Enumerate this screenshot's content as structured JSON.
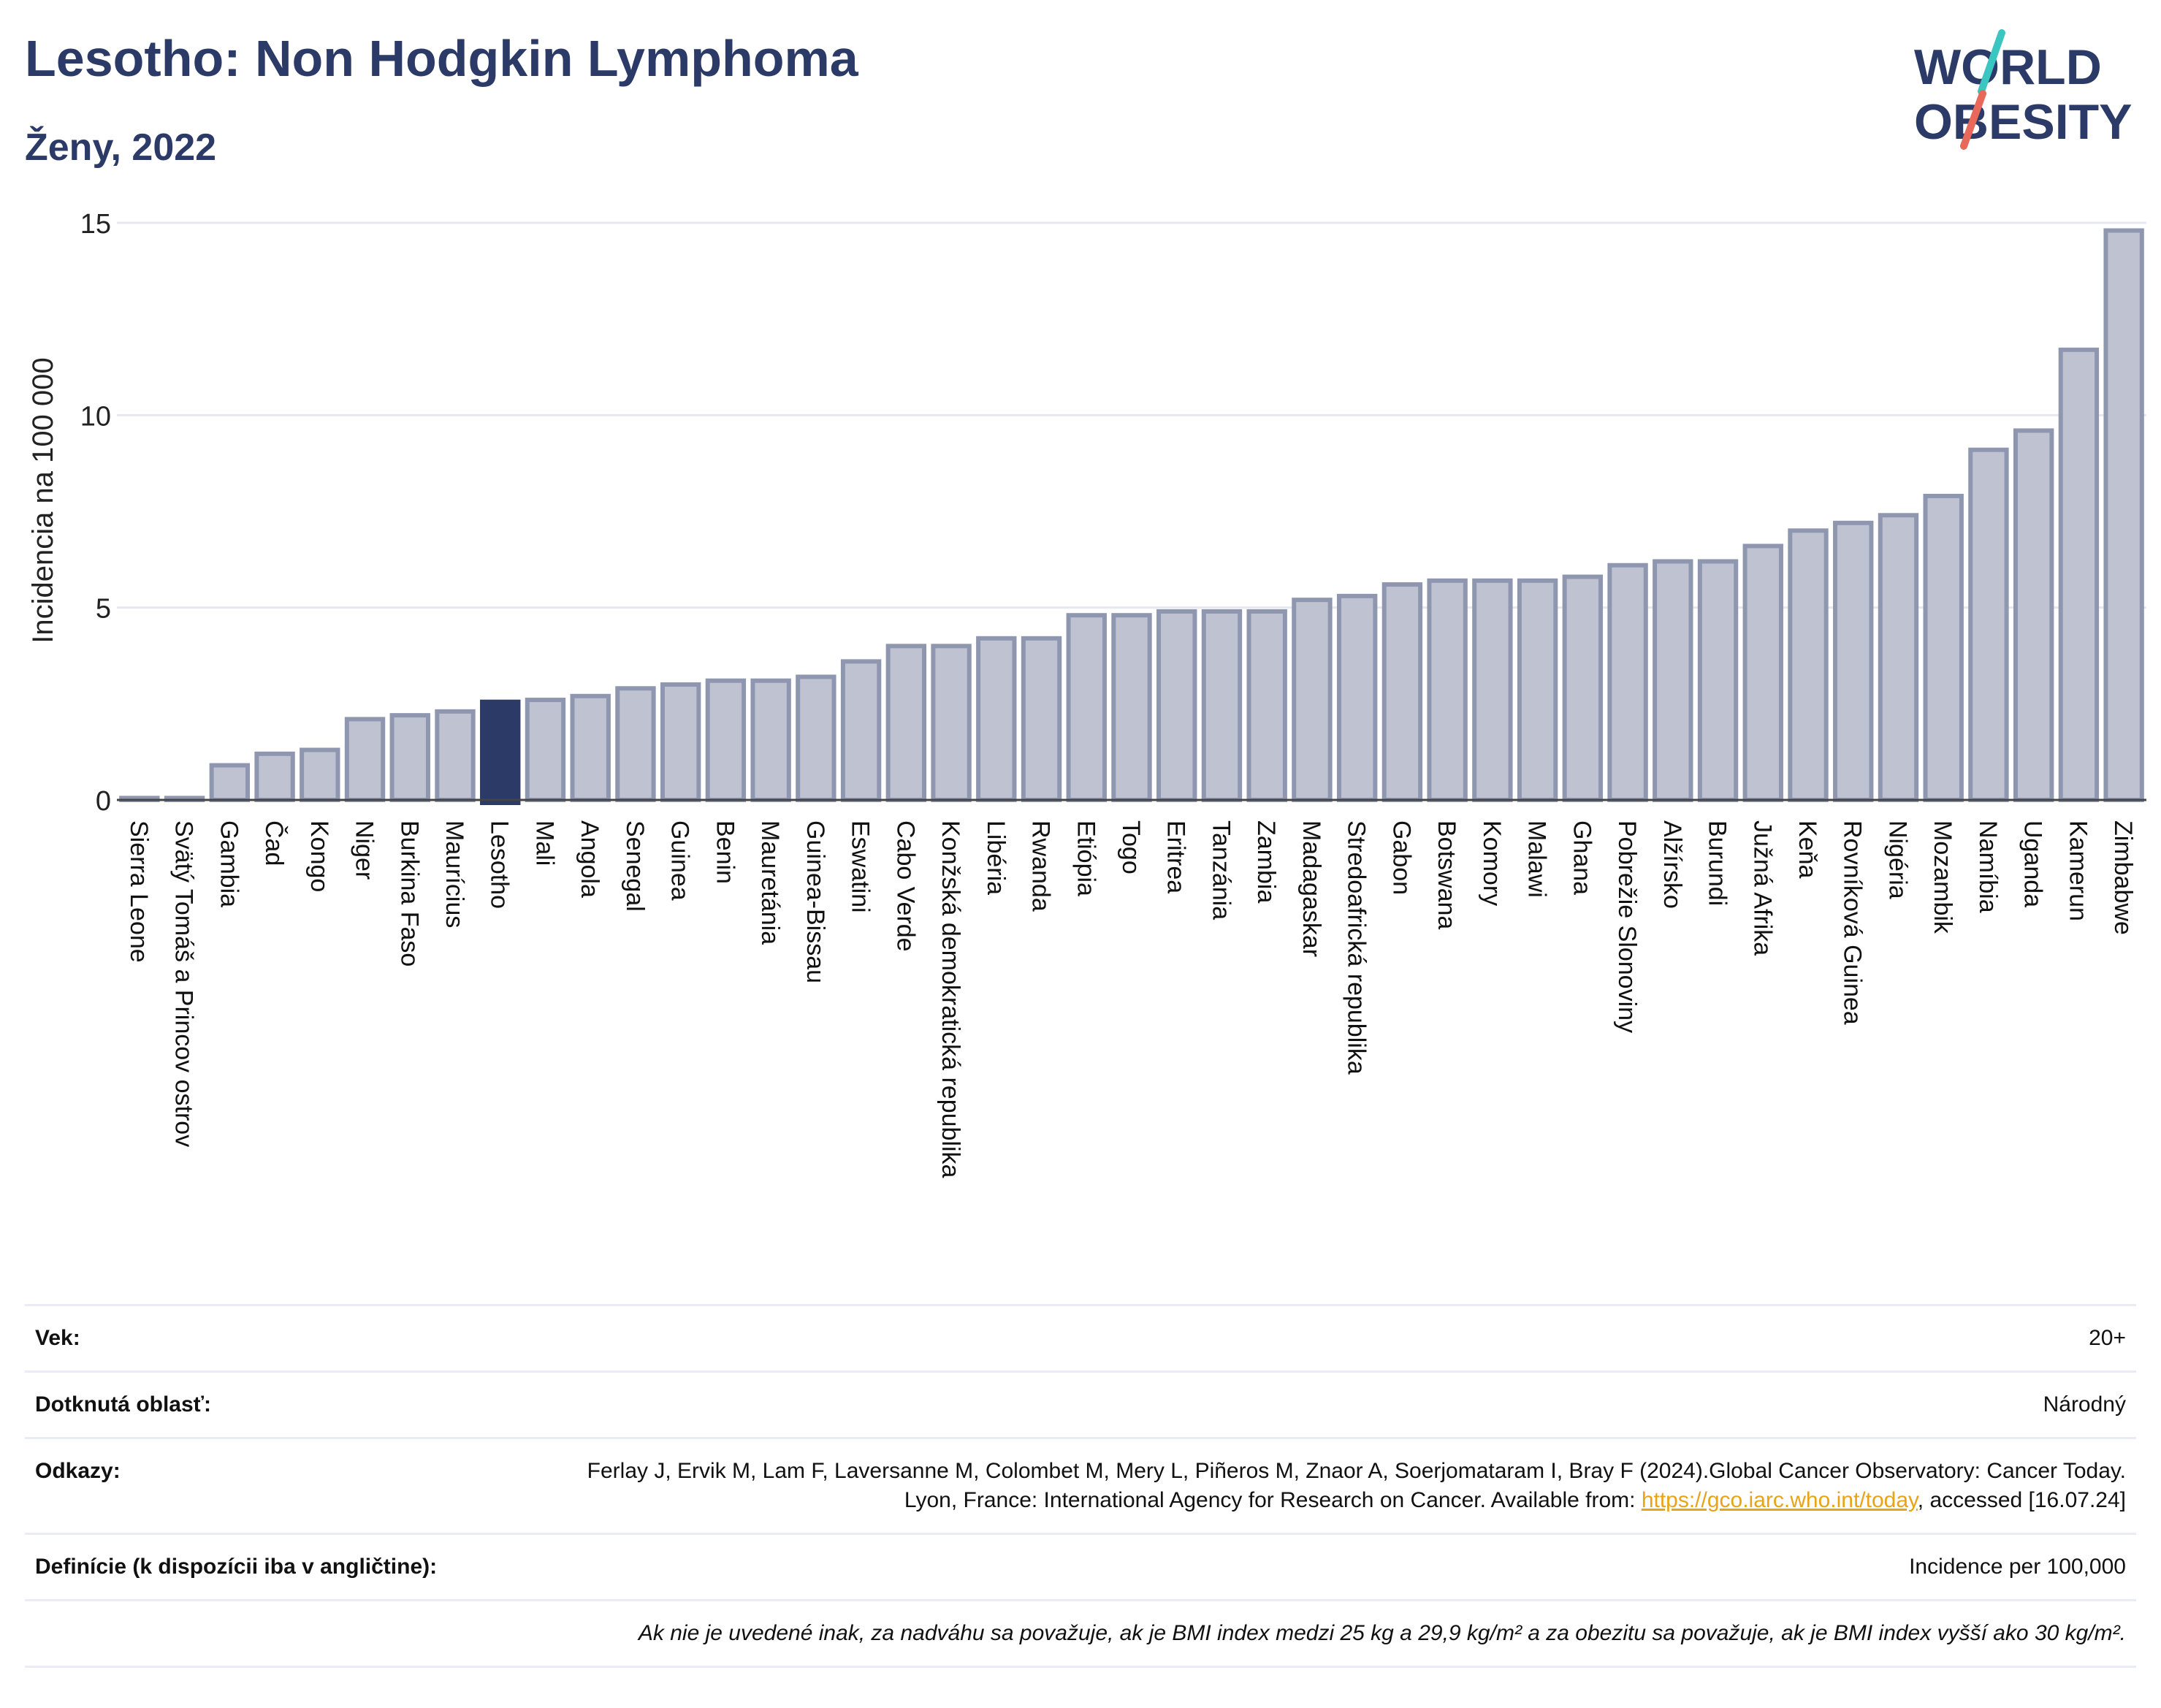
{
  "header": {
    "title": "Lesotho: Non Hodgkin Lymphoma",
    "subtitle": "Ženy, 2022"
  },
  "logo": {
    "line1": "WORLD",
    "line2": "OBESITY"
  },
  "colors": {
    "title": "#2b3a67",
    "bar": "#bfc3d1",
    "bar_stroke": "#8f96b0",
    "highlight": "#2b3a67",
    "grid": "#e6e8ef",
    "logo_teal": "#3cc6c1",
    "logo_coral": "#e8685a",
    "link": "#e8a317"
  },
  "chart_data": {
    "type": "bar",
    "ylabel": "Incidencia na 100 000",
    "ylim": [
      0,
      15
    ],
    "yticks": [
      0,
      5,
      10,
      15
    ],
    "highlight": "Lesotho",
    "grid": true,
    "categories": [
      "Sierra Leone",
      "Svätý Tomáš a Princov ostrov",
      "Gambia",
      "Čad",
      "Kongo",
      "Niger",
      "Burkina Faso",
      "Maurícius",
      "Lesotho",
      "Mali",
      "Angola",
      "Senegal",
      "Guinea",
      "Benin",
      "Mauretánia",
      "Guinea-Bissau",
      "Eswatini",
      "Cabo Verde",
      "Konžská demokratická republika",
      "Libéria",
      "Rwanda",
      "Etiópia",
      "Togo",
      "Eritrea",
      "Tanzánia",
      "Zambia",
      "Madagaskar",
      "Stredoafrická republika",
      "Gabon",
      "Botswana",
      "Komory",
      "Malawi",
      "Ghana",
      "Pobrežie Slonoviny",
      "Alžírsko",
      "Burundi",
      "Južná Afrika",
      "Keňa",
      "Rovníková Guinea",
      "Nigéria",
      "Mozambik",
      "Namíbia",
      "Uganda",
      "Kamerun",
      "Zimbabwe"
    ],
    "values": [
      0.05,
      0.05,
      0.9,
      1.2,
      1.3,
      2.1,
      2.2,
      2.3,
      2.55,
      2.6,
      2.7,
      2.9,
      3.0,
      3.1,
      3.1,
      3.2,
      3.6,
      4.0,
      4.0,
      4.2,
      4.2,
      4.8,
      4.8,
      4.9,
      4.9,
      4.9,
      5.2,
      5.3,
      5.6,
      5.7,
      5.7,
      5.7,
      5.8,
      6.1,
      6.2,
      6.2,
      6.6,
      7.0,
      7.2,
      7.4,
      7.9,
      9.1,
      9.6,
      11.7,
      14.8
    ]
  },
  "meta": {
    "age_label": "Vek:",
    "age_value": "20+",
    "area_label": "Dotknutá oblasť:",
    "area_value": "Národný",
    "refs_label": "Odkazy:",
    "refs_text": "Ferlay J, Ervik M, Lam F, Laversanne M, Colombet M, Mery L, Piñeros M, Znaor A, Soerjomataram I, Bray F (2024).Global Cancer Observatory: Cancer Today. Lyon, France: International Agency for Research on Cancer. Available from: ",
    "refs_link": "https://gco.iarc.who.int/today",
    "refs_tail": ", accessed [16.07.24]",
    "def_label": "Definície (k dispozícii iba v angličtine):",
    "def_value": "Incidence per 100,000",
    "note": "Ak nie je uvedené inak, za nadváhu sa považuje, ak je BMI index medzi 25 kg a 29,9 kg/m² a za obezitu sa považuje, ak je BMI index vyšší ako 30 kg/m²."
  }
}
